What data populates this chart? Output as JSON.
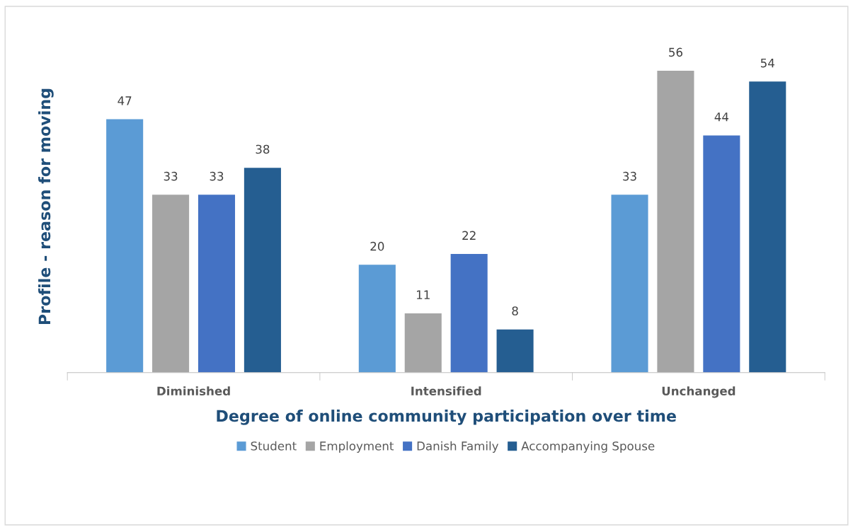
{
  "chart_data": {
    "type": "bar",
    "xlabel": "Degree of online community participation over time",
    "ylabel": "Profile - reason for moving",
    "categories": [
      "Diminished",
      "Intensified",
      "Unchanged"
    ],
    "series": [
      {
        "name": "Student",
        "color": "#5b9bd5",
        "values": [
          47,
          20,
          33
        ]
      },
      {
        "name": "Employment",
        "color": "#a5a5a5",
        "values": [
          33,
          11,
          56
        ]
      },
      {
        "name": "Danish Family",
        "color": "#4472c4",
        "values": [
          33,
          22,
          44
        ]
      },
      {
        "name": "Accompanying Spouse",
        "color": "#255e91",
        "values": [
          38,
          8,
          54
        ]
      }
    ],
    "data_labels": true,
    "grid": false,
    "legend": "bottom"
  }
}
